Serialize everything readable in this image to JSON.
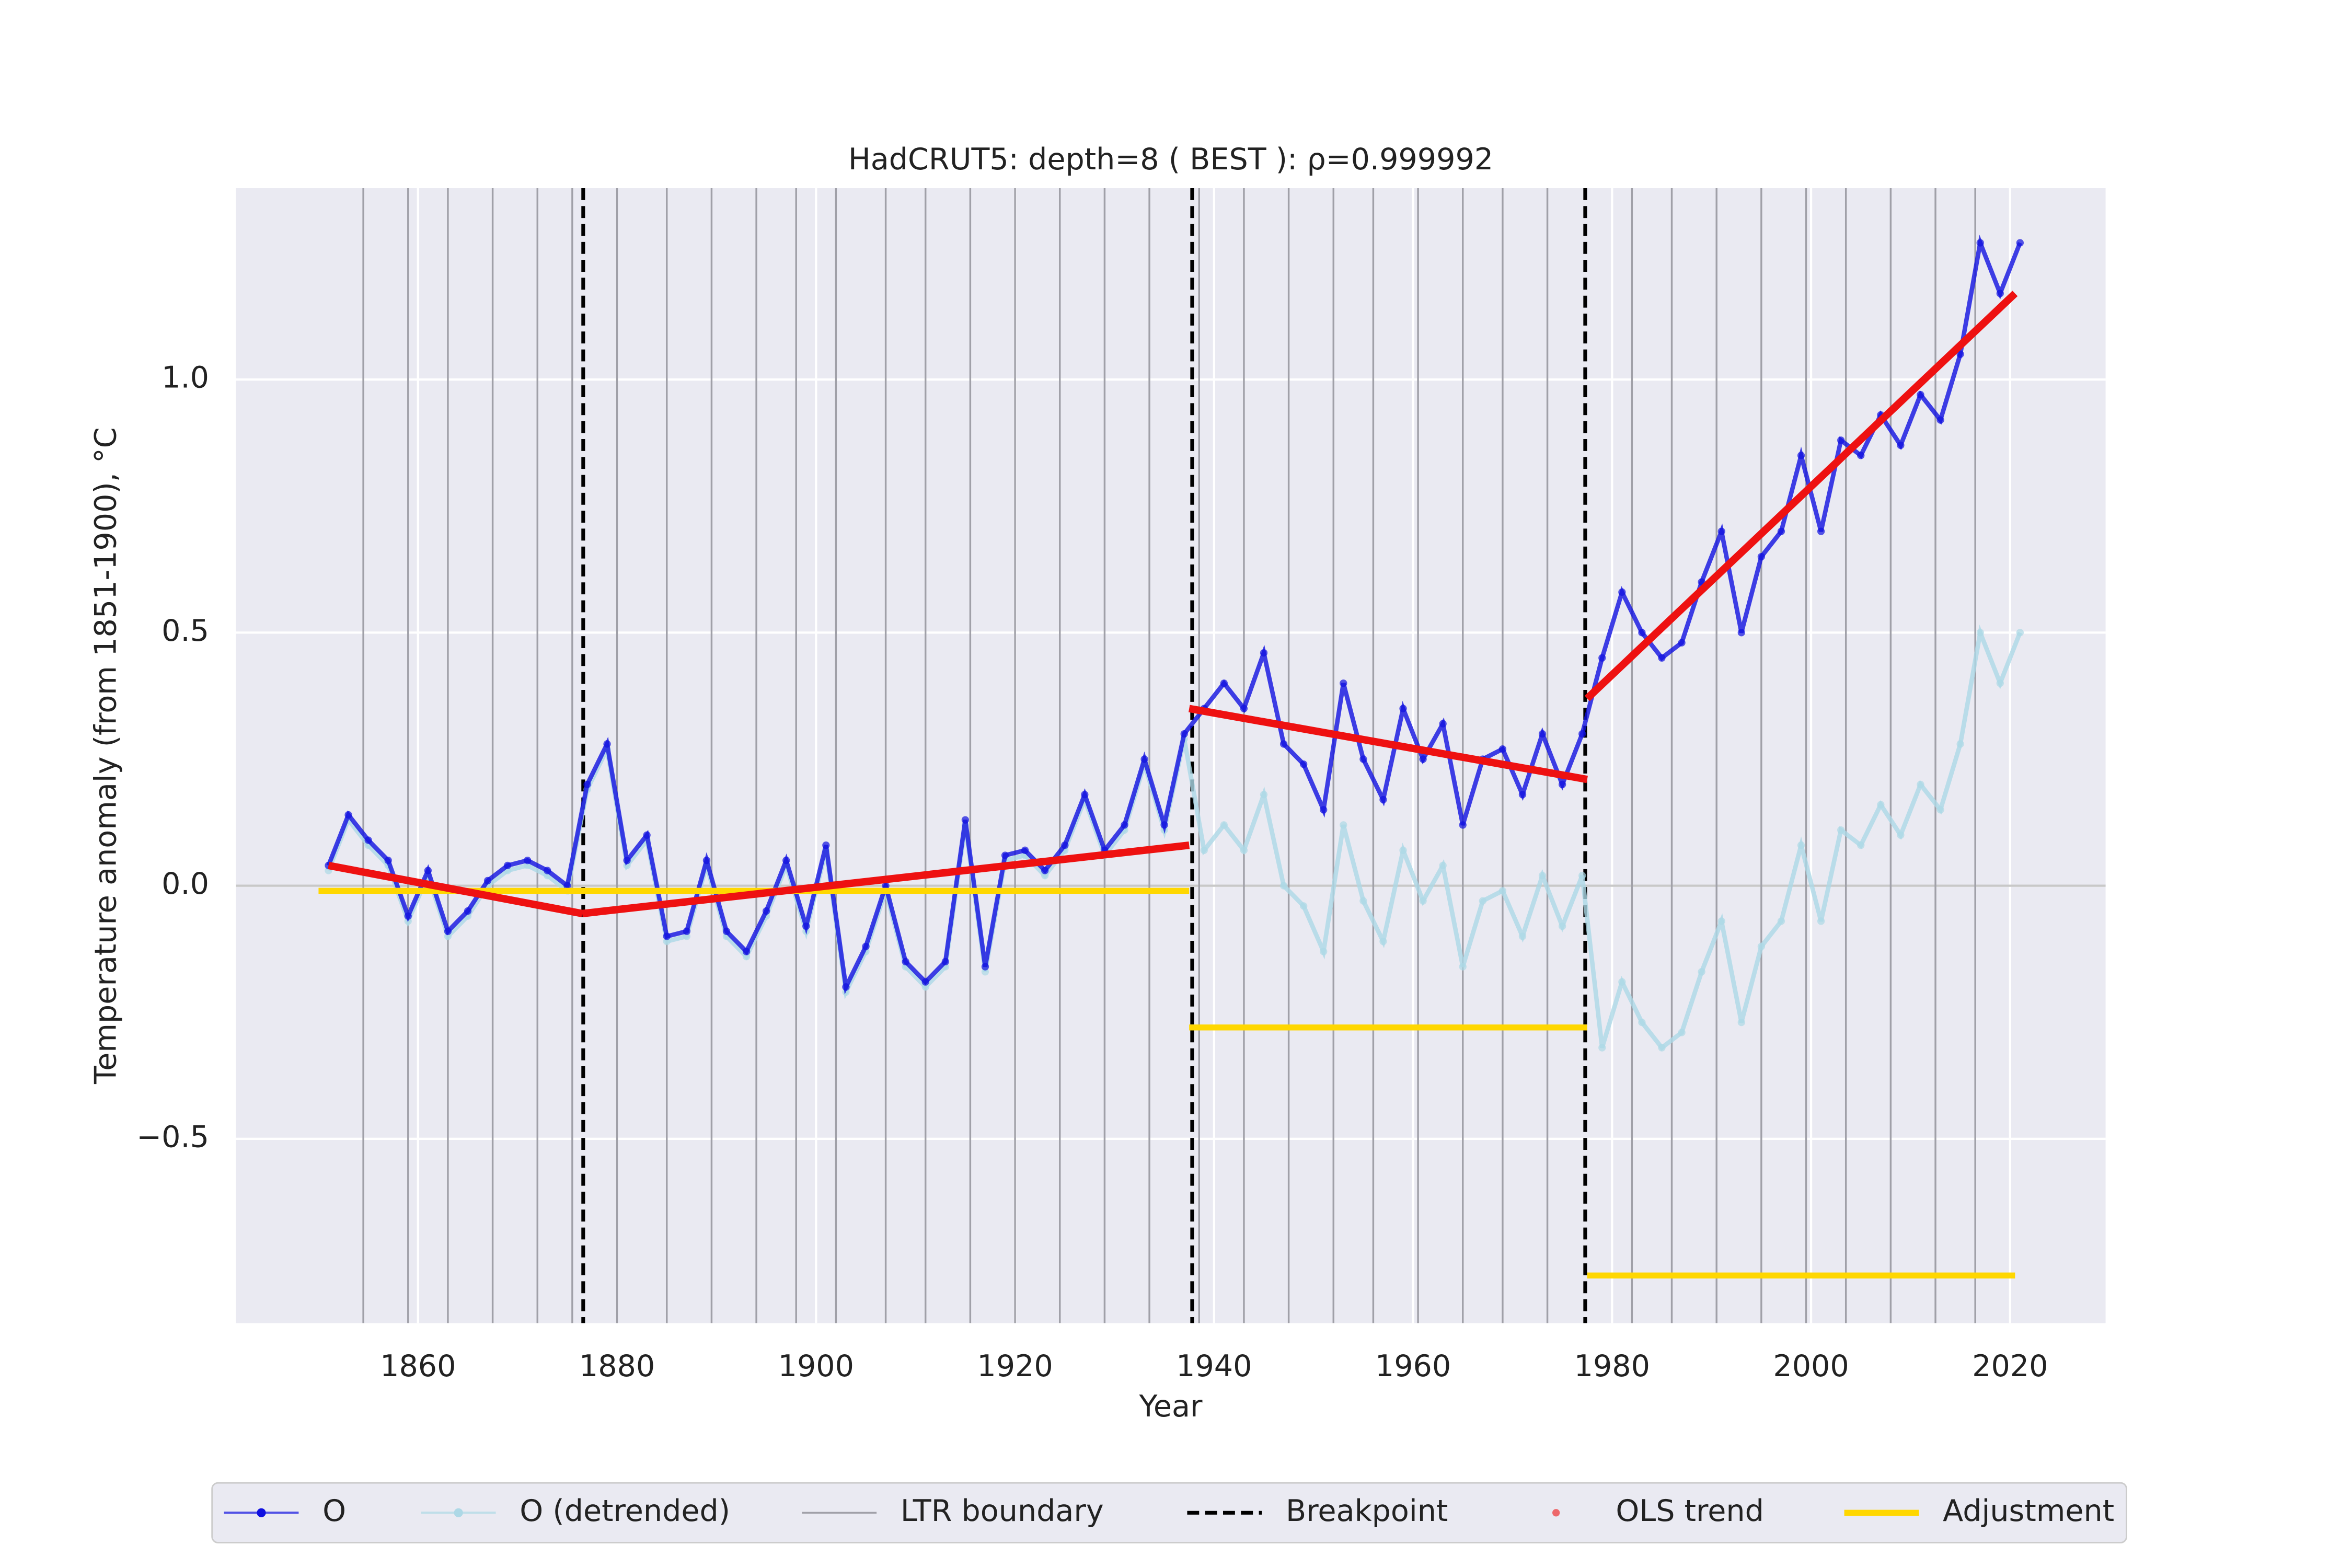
{
  "chart_data": {
    "type": "line",
    "title": "HadCRUT5: depth=8 ( BEST ): ρ=0.999992",
    "x_label": "Year",
    "y_label": "Temperature anomaly (from 1851-1900), °C",
    "xlim": [
      1841.7,
      2029.6
    ],
    "ylim": [
      -0.864,
      1.378
    ],
    "xticks": [
      1860,
      1880,
      1900,
      1920,
      1940,
      1960,
      1980,
      2000,
      2020
    ],
    "yticks": [
      {
        "value": -0.5,
        "label": "−0.5"
      },
      {
        "value": 0,
        "label": "0.0"
      },
      0.5,
      {
        "value": 1,
        "label": "1.0"
      }
    ],
    "grid": true,
    "legend": "bottom",
    "series": [
      {
        "name": "O",
        "color": "#1010e0",
        "style": "line-marker",
        "x": [
          1851,
          1853,
          1855,
          1857,
          1859,
          1861,
          1863,
          1865,
          1867,
          1869,
          1871,
          1873,
          1875,
          1877,
          1879,
          1881,
          1883,
          1885,
          1887,
          1889,
          1891,
          1893,
          1895,
          1897,
          1899,
          1901,
          1903,
          1905,
          1907,
          1909,
          1911,
          1913,
          1915,
          1917,
          1919,
          1921,
          1923,
          1925,
          1927,
          1929,
          1931,
          1933,
          1935,
          1937,
          1939,
          1941,
          1943,
          1945,
          1947,
          1949,
          1951,
          1953,
          1955,
          1957,
          1959,
          1961,
          1963,
          1965,
          1967,
          1969,
          1971,
          1973,
          1975,
          1977,
          1979,
          1981,
          1983,
          1985,
          1987,
          1989,
          1991,
          1993,
          1995,
          1997,
          1999,
          2001,
          2003,
          2005,
          2007,
          2009,
          2011,
          2013,
          2015,
          2017,
          2019,
          2021
        ],
        "values": [
          0.04,
          0.14,
          0.09,
          0.05,
          -0.06,
          0.03,
          -0.09,
          -0.05,
          0.01,
          0.04,
          0.05,
          0.03,
          0.0,
          0.2,
          0.28,
          0.05,
          0.1,
          -0.1,
          -0.09,
          0.05,
          -0.09,
          -0.13,
          -0.05,
          0.05,
          -0.08,
          0.08,
          -0.2,
          -0.12,
          0.0,
          -0.15,
          -0.19,
          -0.15,
          0.13,
          -0.16,
          0.06,
          0.07,
          0.03,
          0.08,
          0.18,
          0.07,
          0.12,
          0.25,
          0.12,
          0.3,
          0.35,
          0.4,
          0.35,
          0.46,
          0.28,
          0.24,
          0.15,
          0.4,
          0.25,
          0.17,
          0.35,
          0.25,
          0.32,
          0.12,
          0.25,
          0.27,
          0.18,
          0.3,
          0.2,
          0.3,
          0.45,
          0.58,
          0.5,
          0.45,
          0.48,
          0.6,
          0.7,
          0.5,
          0.65,
          0.7,
          0.85,
          0.7,
          0.88,
          0.85,
          0.93,
          0.87,
          0.97,
          0.92,
          1.05,
          1.27,
          1.17,
          1.27
        ]
      },
      {
        "name": "O (detrended)",
        "color": "#add8e6",
        "style": "line-marker",
        "x": [
          1851,
          1853,
          1855,
          1857,
          1859,
          1861,
          1863,
          1865,
          1867,
          1869,
          1871,
          1873,
          1875,
          1877,
          1879,
          1881,
          1883,
          1885,
          1887,
          1889,
          1891,
          1893,
          1895,
          1897,
          1899,
          1901,
          1903,
          1905,
          1907,
          1909,
          1911,
          1913,
          1915,
          1917,
          1919,
          1921,
          1923,
          1925,
          1927,
          1929,
          1931,
          1933,
          1935,
          1937,
          1939,
          1941,
          1943,
          1945,
          1947,
          1949,
          1951,
          1953,
          1955,
          1957,
          1959,
          1961,
          1963,
          1965,
          1967,
          1969,
          1971,
          1973,
          1975,
          1977,
          1979,
          1981,
          1983,
          1985,
          1987,
          1989,
          1991,
          1993,
          1995,
          1997,
          1999,
          2001,
          2003,
          2005,
          2007,
          2009,
          2011,
          2013,
          2015,
          2017,
          2019,
          2021
        ],
        "values": [
          0.03,
          0.13,
          0.08,
          0.04,
          -0.07,
          0.02,
          -0.1,
          -0.06,
          0.0,
          0.03,
          0.04,
          0.02,
          -0.01,
          0.19,
          0.27,
          0.04,
          0.09,
          -0.11,
          -0.1,
          0.04,
          -0.1,
          -0.14,
          -0.06,
          0.04,
          -0.09,
          0.07,
          -0.21,
          -0.13,
          -0.01,
          -0.16,
          -0.2,
          -0.16,
          0.12,
          -0.17,
          0.05,
          0.06,
          0.02,
          0.07,
          0.17,
          0.06,
          0.11,
          0.24,
          0.11,
          0.29,
          0.07,
          0.12,
          0.07,
          0.18,
          0.0,
          -0.04,
          -0.13,
          0.12,
          -0.03,
          -0.11,
          0.07,
          -0.03,
          0.04,
          -0.16,
          -0.03,
          -0.01,
          -0.1,
          0.02,
          -0.08,
          0.02,
          -0.32,
          -0.19,
          -0.27,
          -0.32,
          -0.29,
          -0.17,
          -0.07,
          -0.27,
          -0.12,
          -0.07,
          0.08,
          -0.07,
          0.11,
          0.08,
          0.16,
          0.1,
          0.2,
          0.15,
          0.28,
          0.5,
          0.4,
          0.5
        ]
      },
      {
        "name": "LTR boundary",
        "color": "#a0a0a8",
        "style": "vline",
        "x": [
          1854.5,
          1859,
          1863,
          1867.5,
          1872,
          1875.5,
          1880,
          1885,
          1889.5,
          1894,
          1898,
          1902,
          1907,
          1911,
          1915.5,
          1920,
          1924.5,
          1929,
          1933.5,
          1938.5,
          1943,
          1947.5,
          1952,
          1956,
          1960.5,
          1965,
          1969,
          1973.5,
          1982,
          1986,
          1990.5,
          1995,
          1999.5,
          2003.5,
          2008,
          2012.5,
          2016.5
        ]
      },
      {
        "name": "Breakpoint",
        "color": "#000000",
        "style": "vdash",
        "x": [
          1876.6,
          1937.8,
          1977.3
        ]
      },
      {
        "name": "OLS trend",
        "color": "#ee1111",
        "style": "segments",
        "segments": [
          {
            "x": [
              1851,
              1876.5
            ],
            "values": [
              0.04,
              -0.055
            ]
          },
          {
            "x": [
              1876.5,
              1937.5
            ],
            "values": [
              -0.055,
              0.08
            ]
          },
          {
            "x": [
              1937.5,
              1977.5
            ],
            "values": [
              0.35,
              0.21
            ]
          },
          {
            "x": [
              1977.5,
              2020.5
            ],
            "values": [
              0.37,
              1.17
            ]
          }
        ]
      },
      {
        "name": "Adjustment",
        "color": "#ffd700",
        "style": "segments",
        "segments": [
          {
            "x": [
              1850,
              1937.5
            ],
            "values": [
              -0.01,
              -0.01
            ]
          },
          {
            "x": [
              1937.5,
              1977.5
            ],
            "values": [
              -0.28,
              -0.28
            ]
          },
          {
            "x": [
              1977.5,
              2020.5
            ],
            "values": [
              -0.77,
              -0.77
            ]
          }
        ]
      }
    ]
  }
}
